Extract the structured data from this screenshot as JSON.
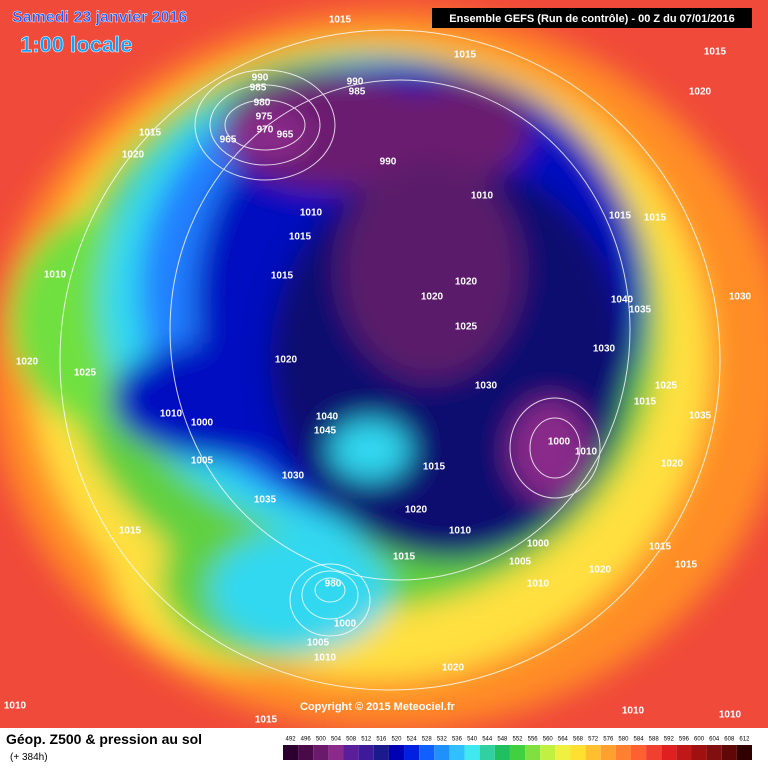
{
  "header": {
    "title": "Samedi 23 janvier 2016",
    "time": "1:00 locale",
    "run": "Ensemble GEFS  (Run de contrôle)  -  00 Z du 07/01/2016"
  },
  "footer": {
    "caption": "Géop. Z500 & pression au sol",
    "lead": "(+ 384h)",
    "copyright": "Copyright © 2015 Meteociel.fr"
  },
  "isobar_labels": [
    "1015",
    "1015",
    "1015",
    "1020",
    "990",
    "985",
    "980",
    "975",
    "970",
    "965",
    "965",
    "990",
    "985",
    "990",
    "1015",
    "1020",
    "1010",
    "1015",
    "1010",
    "1015",
    "1015",
    "1010",
    "1015",
    "1020",
    "1020",
    "1025",
    "1040",
    "1035",
    "1030",
    "1020",
    "1025",
    "1020",
    "1030",
    "1030",
    "1025",
    "1010",
    "1000",
    "1040",
    "1045",
    "1015",
    "1035",
    "1000",
    "1010",
    "1005",
    "1030",
    "1015",
    "1020",
    "1035",
    "1020",
    "1010",
    "1015",
    "1000",
    "1015",
    "1015",
    "1005",
    "1020",
    "1010",
    "1015",
    "980",
    "1000",
    "1005",
    "1010",
    "1020",
    "1010",
    "1015",
    "1010",
    "1010"
  ],
  "colorbar": {
    "labels": [
      "492",
      "496",
      "500",
      "504",
      "508",
      "512",
      "516",
      "520",
      "524",
      "528",
      "532",
      "536",
      "540",
      "544",
      "548",
      "552",
      "556",
      "560",
      "564",
      "568",
      "572",
      "576",
      "580",
      "584",
      "588",
      "592",
      "596",
      "600",
      "604",
      "608",
      "612"
    ],
    "colors": [
      "#2b0030",
      "#4a0a4a",
      "#6a1a6a",
      "#8a2a8a",
      "#5a1e9a",
      "#3c1a9a",
      "#1a1a8c",
      "#0000b4",
      "#0020e0",
      "#1060ff",
      "#2090ff",
      "#30c0ff",
      "#40e8f0",
      "#30d0a0",
      "#20c060",
      "#40d040",
      "#80e040",
      "#c0f040",
      "#f0f040",
      "#ffe030",
      "#ffc030",
      "#ffa030",
      "#ff8030",
      "#ff6030",
      "#f04030",
      "#e02020",
      "#c01818",
      "#a01010",
      "#801010",
      "#600808",
      "#300000"
    ]
  }
}
